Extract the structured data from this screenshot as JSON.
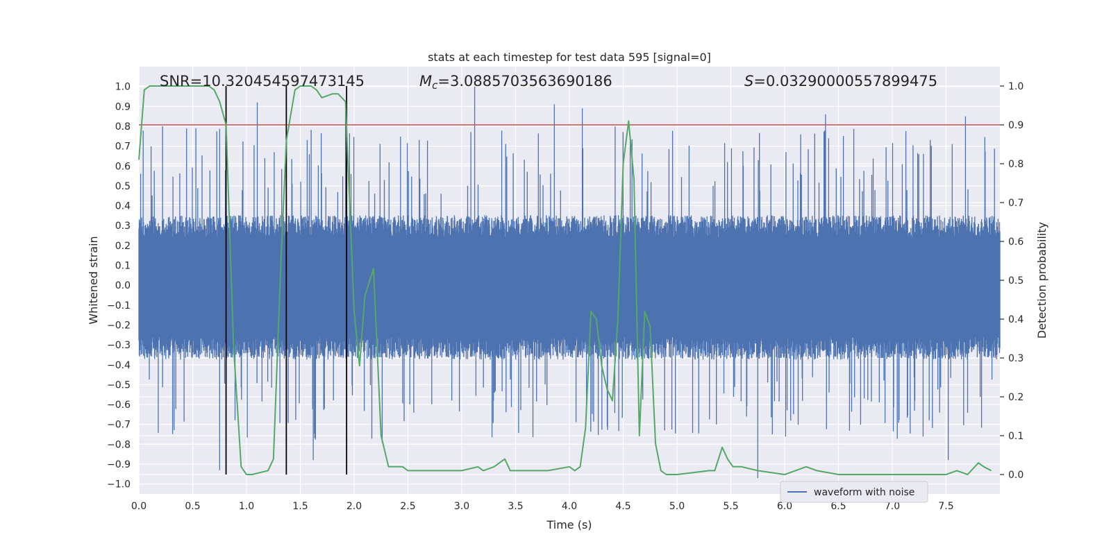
{
  "chart_data": {
    "type": "line",
    "title": "stats at each timestep for test data 595 [signal=0]",
    "xlabel": "Time (s)",
    "ylabel": "Whitened strain",
    "ylabel_right": "Detection probability",
    "xlim": [
      0.0,
      8.0
    ],
    "ylim": [
      -1.05,
      1.1
    ],
    "ylim_right": [
      -0.05,
      1.05
    ],
    "xticks": [
      "0.0",
      "0.5",
      "1.0",
      "1.5",
      "2.0",
      "2.5",
      "3.0",
      "3.5",
      "4.0",
      "4.5",
      "5.0",
      "5.5",
      "6.0",
      "6.5",
      "7.0",
      "7.5"
    ],
    "xtick_values": [
      0.0,
      0.5,
      1.0,
      1.5,
      2.0,
      2.5,
      3.0,
      3.5,
      4.0,
      4.5,
      5.0,
      5.5,
      6.0,
      6.5,
      7.0,
      7.5
    ],
    "yticks": [
      "1.0",
      "0.9",
      "0.8",
      "0.7",
      "0.6",
      "0.5",
      "0.4",
      "0.3",
      "0.2",
      "0.1",
      "0.0",
      "−0.1",
      "−0.2",
      "−0.3",
      "−0.4",
      "−0.5",
      "−0.6",
      "−0.7",
      "−0.8",
      "−0.9",
      "−1.0"
    ],
    "ytick_values": [
      1.0,
      0.9,
      0.8,
      0.7,
      0.6,
      0.5,
      0.4,
      0.3,
      0.2,
      0.1,
      0.0,
      -0.1,
      -0.2,
      -0.3,
      -0.4,
      -0.5,
      -0.6,
      -0.7,
      -0.8,
      -0.9,
      -1.0
    ],
    "yticks_right": [
      "1.0",
      "0.9",
      "0.8",
      "0.7",
      "0.6",
      "0.5",
      "0.4",
      "0.3",
      "0.2",
      "0.1",
      "0.0"
    ],
    "ytick_values_right": [
      1.0,
      0.9,
      0.8,
      0.7,
      0.6,
      0.5,
      0.4,
      0.3,
      0.2,
      0.1,
      0.0
    ],
    "annotations": {
      "snr": "SNR=10.320454597473145",
      "mc_symbol": "M",
      "mc_sub": "c",
      "mc_value": "=3.0885703563690186",
      "s_symbol": "S",
      "s_value": "=0.03290000557899475"
    },
    "legend": {
      "label": "waveform with noise",
      "placement": "lower-right"
    },
    "threshold": {
      "value_right": 0.9,
      "color": "#c44e52"
    },
    "vertical_markers": [
      0.81,
      1.37,
      1.93
    ],
    "waveform": {
      "name": "waveform with noise",
      "color": "#4c72b0",
      "duration_s": 8.0,
      "band_upper": 0.32,
      "band_lower": -0.34,
      "spike_up_max": 1.0,
      "spike_down_min": -0.93,
      "notable_peaks": [
        {
          "t": 0.22,
          "v": 0.8
        },
        {
          "t": 0.53,
          "v": 0.79
        },
        {
          "t": 1.1,
          "v": 0.92
        },
        {
          "t": 1.92,
          "v": 0.9
        },
        {
          "t": 3.12,
          "v": 1.0
        },
        {
          "t": 3.86,
          "v": 0.91
        },
        {
          "t": 4.12,
          "v": 0.89
        },
        {
          "t": 6.38,
          "v": 0.86
        },
        {
          "t": 7.68,
          "v": 0.85
        },
        {
          "t": 0.75,
          "v": -0.93
        },
        {
          "t": 1.62,
          "v": -0.88
        },
        {
          "t": 5.75,
          "v": -0.97
        },
        {
          "t": 7.52,
          "v": -0.88
        }
      ]
    },
    "probability": {
      "name": "Detection probability",
      "color": "#55a868",
      "t": [
        0.0,
        0.05,
        0.1,
        0.2,
        0.3,
        0.5,
        0.65,
        0.7,
        0.75,
        0.81,
        0.88,
        0.95,
        1.0,
        1.05,
        1.2,
        1.25,
        1.32,
        1.37,
        1.45,
        1.5,
        1.55,
        1.6,
        1.65,
        1.7,
        1.8,
        1.85,
        1.92,
        1.95,
        2.0,
        2.05,
        2.1,
        2.18,
        2.25,
        2.32,
        2.45,
        2.5,
        2.6,
        3.0,
        3.15,
        3.2,
        3.3,
        3.4,
        3.45,
        3.5,
        3.6,
        3.8,
        4.0,
        4.05,
        4.1,
        4.15,
        4.2,
        4.25,
        4.3,
        4.35,
        4.4,
        4.45,
        4.5,
        4.55,
        4.6,
        4.65,
        4.7,
        4.75,
        4.8,
        4.85,
        4.9,
        5.0,
        5.3,
        5.35,
        5.42,
        5.47,
        5.52,
        5.6,
        5.75,
        6.0,
        6.1,
        6.2,
        6.3,
        6.5,
        7.0,
        7.5,
        7.6,
        7.7,
        7.8,
        7.85,
        7.92
      ],
      "v": [
        0.81,
        0.99,
        1.0,
        1.0,
        1.0,
        1.0,
        1.0,
        0.99,
        0.96,
        0.9,
        0.33,
        0.02,
        0.0,
        0.0,
        0.01,
        0.04,
        0.55,
        0.86,
        0.99,
        1.0,
        1.0,
        1.0,
        0.99,
        0.97,
        0.98,
        0.98,
        0.96,
        0.75,
        0.42,
        0.28,
        0.46,
        0.53,
        0.1,
        0.02,
        0.02,
        0.01,
        0.01,
        0.01,
        0.02,
        0.01,
        0.02,
        0.04,
        0.01,
        0.01,
        0.01,
        0.01,
        0.02,
        0.01,
        0.02,
        0.12,
        0.42,
        0.4,
        0.28,
        0.22,
        0.19,
        0.4,
        0.8,
        0.91,
        0.76,
        0.1,
        0.42,
        0.38,
        0.08,
        0.01,
        0.0,
        0.0,
        0.01,
        0.01,
        0.07,
        0.04,
        0.02,
        0.02,
        0.01,
        0.0,
        0.01,
        0.02,
        0.01,
        0.0,
        0.0,
        0.0,
        0.01,
        0.0,
        0.03,
        0.02,
        0.01
      ]
    }
  }
}
